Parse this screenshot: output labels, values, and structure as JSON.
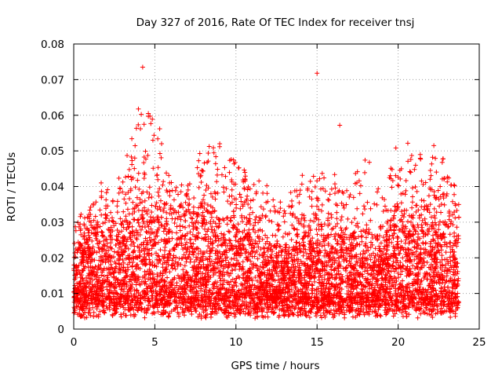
{
  "chart_data": {
    "type": "scatter",
    "title": "Day 327 of 2016, Rate Of TEC Index for receiver tnsj",
    "xlabel": "GPS time / hours",
    "ylabel": "ROTI / TECUs",
    "xlim": [
      0,
      25
    ],
    "ylim": [
      0,
      0.08
    ],
    "x_ticks": [
      0,
      5,
      10,
      15,
      20,
      25
    ],
    "y_ticks": [
      0,
      0.01,
      0.02,
      0.03,
      0.04,
      0.05,
      0.06,
      0.07,
      0.08
    ],
    "x_tick_labels": [
      "0",
      "5",
      "10",
      "15",
      "20",
      "25"
    ],
    "y_tick_labels": [
      "0",
      "0.01",
      "0.02",
      "0.03",
      "0.04",
      "0.05",
      "0.06",
      "0.07",
      "0.08"
    ],
    "grid": true,
    "marker": "plus",
    "color": "#ff0000",
    "data_range_hours": [
      0,
      23.75
    ],
    "envelope": {
      "hours": [
        0,
        1,
        2,
        3,
        4,
        5,
        6,
        7,
        8,
        9,
        10,
        11,
        12,
        13,
        14,
        15,
        16,
        17,
        18,
        19,
        20,
        21,
        22,
        23,
        23.75
      ],
      "base_max": [
        0.021,
        0.027,
        0.03,
        0.029,
        0.036,
        0.034,
        0.032,
        0.031,
        0.034,
        0.03,
        0.031,
        0.029,
        0.023,
        0.022,
        0.025,
        0.028,
        0.027,
        0.025,
        0.027,
        0.024,
        0.033,
        0.031,
        0.033,
        0.032,
        0.025
      ],
      "spikes_max": [
        0.031,
        0.034,
        0.045,
        0.044,
        0.062,
        0.06,
        0.042,
        0.04,
        0.053,
        0.052,
        0.048,
        0.042,
        0.041,
        0.036,
        0.044,
        0.044,
        0.044,
        0.04,
        0.05,
        0.037,
        0.055,
        0.051,
        0.051,
        0.047,
        0.042
      ],
      "floor_min": 0.003
    },
    "outliers": [
      {
        "x": 4.25,
        "y": 0.0735
      },
      {
        "x": 15.0,
        "y": 0.0718
      },
      {
        "x": 16.4,
        "y": 0.0572
      },
      {
        "x": 4.6,
        "y": 0.0605
      },
      {
        "x": 4.6,
        "y": 0.0597
      },
      {
        "x": 9.0,
        "y": 0.052
      },
      {
        "x": 5.3,
        "y": 0.0562
      },
      {
        "x": 22.2,
        "y": 0.0515
      }
    ]
  }
}
